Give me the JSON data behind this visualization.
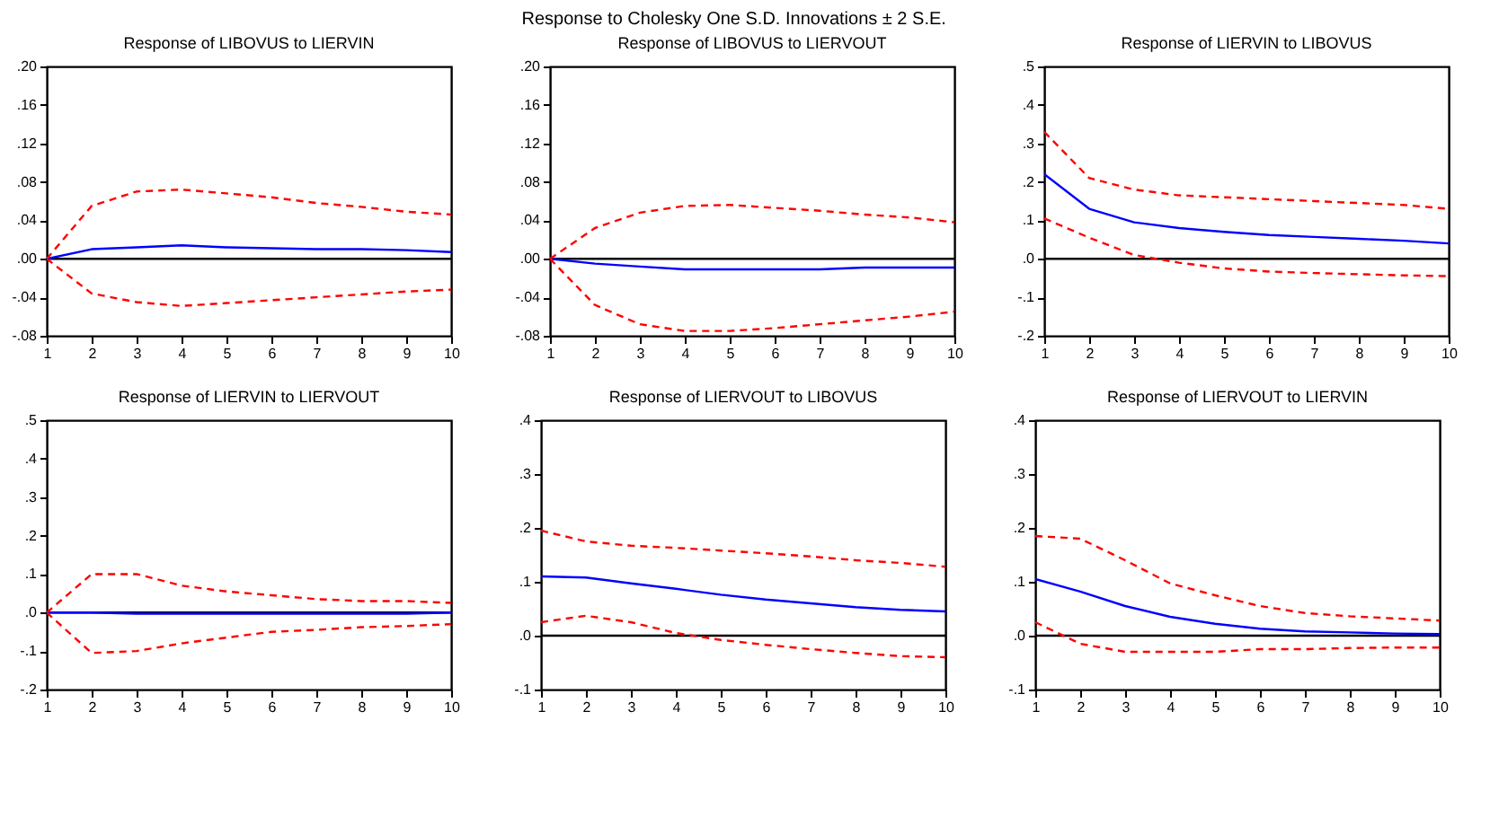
{
  "chart_data": [
    {
      "type": "line",
      "title": "Response of LIBOVUS to LIERVIN",
      "annotations": [
        "Response to Cholesky One S.D. Innovations ± 2 S.E."
      ],
      "x": [
        1,
        2,
        3,
        4,
        5,
        6,
        7,
        8,
        9,
        10
      ],
      "xlim": [
        1,
        10
      ],
      "xticks": [
        1,
        2,
        3,
        4,
        5,
        6,
        7,
        8,
        9,
        10
      ],
      "ylim": [
        -0.08,
        0.2
      ],
      "yticks": [
        {
          "value": -0.08,
          "label": "-.08"
        },
        {
          "value": -0.04,
          "label": "-.04"
        },
        {
          "value": 0,
          "label": ".00"
        },
        {
          "value": 0.04,
          "label": ".04"
        },
        {
          "value": 0.08,
          "label": ".08"
        },
        {
          "value": 0.12,
          "label": ".12"
        },
        {
          "value": 0.16,
          "label": ".16"
        },
        {
          "value": 0.2,
          "label": ".20"
        }
      ],
      "grid": false,
      "ref_lines": [
        {
          "axis": "y",
          "value": 0,
          "color": "#000000"
        }
      ],
      "series": [
        {
          "color": "#0000ff",
          "line_style": "solid",
          "values": [
            0,
            0.01,
            0.012,
            0.014,
            0.012,
            0.011,
            0.01,
            0.01,
            0.009,
            0.007
          ]
        },
        {
          "color": "#ff0000",
          "line_style": "dashed",
          "values": [
            0,
            0.055,
            0.07,
            0.072,
            0.068,
            0.064,
            0.058,
            0.054,
            0.049,
            0.046
          ]
        },
        {
          "color": "#ff0000",
          "line_style": "dashed",
          "values": [
            0,
            -0.036,
            -0.045,
            -0.049,
            -0.046,
            -0.043,
            -0.04,
            -0.037,
            -0.034,
            -0.032
          ]
        }
      ]
    },
    {
      "type": "line",
      "title": "Response of LIBOVUS to LIERVOUT",
      "x": [
        1,
        2,
        3,
        4,
        5,
        6,
        7,
        8,
        9,
        10
      ],
      "xlim": [
        1,
        10
      ],
      "xticks": [
        1,
        2,
        3,
        4,
        5,
        6,
        7,
        8,
        9,
        10
      ],
      "ylim": [
        -0.08,
        0.2
      ],
      "yticks": [
        {
          "value": -0.08,
          "label": "-.08"
        },
        {
          "value": -0.04,
          "label": "-.04"
        },
        {
          "value": 0,
          "label": ".00"
        },
        {
          "value": 0.04,
          "label": ".04"
        },
        {
          "value": 0.08,
          "label": ".08"
        },
        {
          "value": 0.12,
          "label": ".12"
        },
        {
          "value": 0.16,
          "label": ".16"
        },
        {
          "value": 0.2,
          "label": ".20"
        }
      ],
      "grid": false,
      "ref_lines": [
        {
          "axis": "y",
          "value": 0,
          "color": "#000000"
        }
      ],
      "series": [
        {
          "color": "#0000ff",
          "line_style": "solid",
          "values": [
            0,
            -0.005,
            -0.008,
            -0.011,
            -0.011,
            -0.011,
            -0.011,
            -0.009,
            -0.009,
            -0.009
          ]
        },
        {
          "color": "#ff0000",
          "line_style": "dashed",
          "values": [
            0,
            0.032,
            0.048,
            0.055,
            0.056,
            0.053,
            0.05,
            0.046,
            0.043,
            0.038
          ]
        },
        {
          "color": "#ff0000",
          "line_style": "dashed",
          "values": [
            0,
            -0.048,
            -0.068,
            -0.075,
            -0.075,
            -0.072,
            -0.068,
            -0.064,
            -0.06,
            -0.055
          ]
        }
      ]
    },
    {
      "type": "line",
      "title": "Response of LIERVIN to LIBOVUS",
      "x": [
        1,
        2,
        3,
        4,
        5,
        6,
        7,
        8,
        9,
        10
      ],
      "xlim": [
        1,
        10
      ],
      "xticks": [
        1,
        2,
        3,
        4,
        5,
        6,
        7,
        8,
        9,
        10
      ],
      "ylim": [
        -0.2,
        0.5
      ],
      "yticks": [
        {
          "value": -0.2,
          "label": "-.2"
        },
        {
          "value": -0.1,
          "label": "-.1"
        },
        {
          "value": 0,
          "label": ".0"
        },
        {
          "value": 0.1,
          "label": ".1"
        },
        {
          "value": 0.2,
          "label": ".2"
        },
        {
          "value": 0.3,
          "label": ".3"
        },
        {
          "value": 0.4,
          "label": ".4"
        },
        {
          "value": 0.5,
          "label": ".5"
        }
      ],
      "grid": false,
      "ref_lines": [
        {
          "axis": "y",
          "value": 0,
          "color": "#000000"
        }
      ],
      "series": [
        {
          "color": "#0000ff",
          "line_style": "solid",
          "values": [
            0.22,
            0.13,
            0.095,
            0.08,
            0.07,
            0.062,
            0.057,
            0.052,
            0.047,
            0.04
          ]
        },
        {
          "color": "#ff0000",
          "line_style": "dashed",
          "values": [
            0.33,
            0.21,
            0.18,
            0.165,
            0.16,
            0.155,
            0.15,
            0.145,
            0.14,
            0.13
          ]
        },
        {
          "color": "#ff0000",
          "line_style": "dashed",
          "values": [
            0.105,
            0.055,
            0.01,
            -0.01,
            -0.025,
            -0.033,
            -0.037,
            -0.04,
            -0.043,
            -0.045
          ]
        }
      ]
    },
    {
      "type": "line",
      "title": "Response of LIERVIN to LIERVOUT",
      "x": [
        1,
        2,
        3,
        4,
        5,
        6,
        7,
        8,
        9,
        10
      ],
      "xlim": [
        1,
        10
      ],
      "xticks": [
        1,
        2,
        3,
        4,
        5,
        6,
        7,
        8,
        9,
        10
      ],
      "ylim": [
        -0.2,
        0.5
      ],
      "yticks": [
        {
          "value": -0.2,
          "label": "-.2"
        },
        {
          "value": -0.1,
          "label": "-.1"
        },
        {
          "value": 0,
          "label": ".0"
        },
        {
          "value": 0.1,
          "label": ".1"
        },
        {
          "value": 0.2,
          "label": ".2"
        },
        {
          "value": 0.3,
          "label": ".3"
        },
        {
          "value": 0.4,
          "label": ".4"
        },
        {
          "value": 0.5,
          "label": ".5"
        }
      ],
      "grid": false,
      "ref_lines": [
        {
          "axis": "y",
          "value": 0,
          "color": "#000000"
        }
      ],
      "series": [
        {
          "color": "#0000ff",
          "line_style": "solid",
          "values": [
            0,
            0,
            -0.003,
            -0.003,
            -0.003,
            -0.003,
            -0.003,
            -0.003,
            -0.003,
            0
          ]
        },
        {
          "color": "#ff0000",
          "line_style": "dashed",
          "values": [
            0,
            0.1,
            0.1,
            0.07,
            0.055,
            0.045,
            0.035,
            0.03,
            0.03,
            0.025
          ]
        },
        {
          "color": "#ff0000",
          "line_style": "dashed",
          "values": [
            0,
            -0.105,
            -0.1,
            -0.08,
            -0.065,
            -0.05,
            -0.045,
            -0.038,
            -0.035,
            -0.03
          ]
        }
      ]
    },
    {
      "type": "line",
      "title": "Response of LIERVOUT to LIBOVUS",
      "x": [
        1,
        2,
        3,
        4,
        5,
        6,
        7,
        8,
        9,
        10
      ],
      "xlim": [
        1,
        10
      ],
      "xticks": [
        1,
        2,
        3,
        4,
        5,
        6,
        7,
        8,
        9,
        10
      ],
      "ylim": [
        -0.1,
        0.4
      ],
      "yticks": [
        {
          "value": -0.1,
          "label": "-.1"
        },
        {
          "value": 0,
          "label": ".0"
        },
        {
          "value": 0.1,
          "label": ".1"
        },
        {
          "value": 0.2,
          "label": ".2"
        },
        {
          "value": 0.3,
          "label": ".3"
        },
        {
          "value": 0.4,
          "label": ".4"
        }
      ],
      "grid": false,
      "ref_lines": [
        {
          "axis": "y",
          "value": 0,
          "color": "#000000"
        }
      ],
      "series": [
        {
          "color": "#0000ff",
          "line_style": "solid",
          "values": [
            0.11,
            0.108,
            0.097,
            0.087,
            0.076,
            0.067,
            0.06,
            0.053,
            0.048,
            0.045
          ]
        },
        {
          "color": "#ff0000",
          "line_style": "dashed",
          "values": [
            0.195,
            0.175,
            0.167,
            0.163,
            0.158,
            0.153,
            0.147,
            0.14,
            0.135,
            0.128
          ]
        },
        {
          "color": "#ff0000",
          "line_style": "dashed",
          "values": [
            0.025,
            0.037,
            0.025,
            0.005,
            -0.008,
            -0.017,
            -0.025,
            -0.032,
            -0.038,
            -0.04
          ]
        }
      ]
    },
    {
      "type": "line",
      "title": "Response of LIERVOUT to LIERVIN",
      "x": [
        1,
        2,
        3,
        4,
        5,
        6,
        7,
        8,
        9,
        10
      ],
      "xlim": [
        1,
        10
      ],
      "xticks": [
        1,
        2,
        3,
        4,
        5,
        6,
        7,
        8,
        9,
        10
      ],
      "ylim": [
        -0.1,
        0.4
      ],
      "yticks": [
        {
          "value": -0.1,
          "label": "-.1"
        },
        {
          "value": 0,
          "label": ".0"
        },
        {
          "value": 0.1,
          "label": ".1"
        },
        {
          "value": 0.2,
          "label": ".2"
        },
        {
          "value": 0.3,
          "label": ".3"
        },
        {
          "value": 0.4,
          "label": ".4"
        }
      ],
      "grid": false,
      "ref_lines": [
        {
          "axis": "y",
          "value": 0,
          "color": "#000000"
        }
      ],
      "series": [
        {
          "color": "#0000ff",
          "line_style": "solid",
          "values": [
            0.105,
            0.082,
            0.055,
            0.035,
            0.022,
            0.013,
            0.008,
            0.006,
            0.004,
            0.003
          ]
        },
        {
          "color": "#ff0000",
          "line_style": "dashed",
          "values": [
            0.185,
            0.18,
            0.14,
            0.097,
            0.075,
            0.055,
            0.042,
            0.036,
            0.032,
            0.028
          ]
        },
        {
          "color": "#ff0000",
          "line_style": "dashed",
          "values": [
            0.025,
            -0.015,
            -0.03,
            -0.03,
            -0.03,
            -0.025,
            -0.025,
            -0.023,
            -0.022,
            -0.022
          ]
        }
      ]
    }
  ]
}
